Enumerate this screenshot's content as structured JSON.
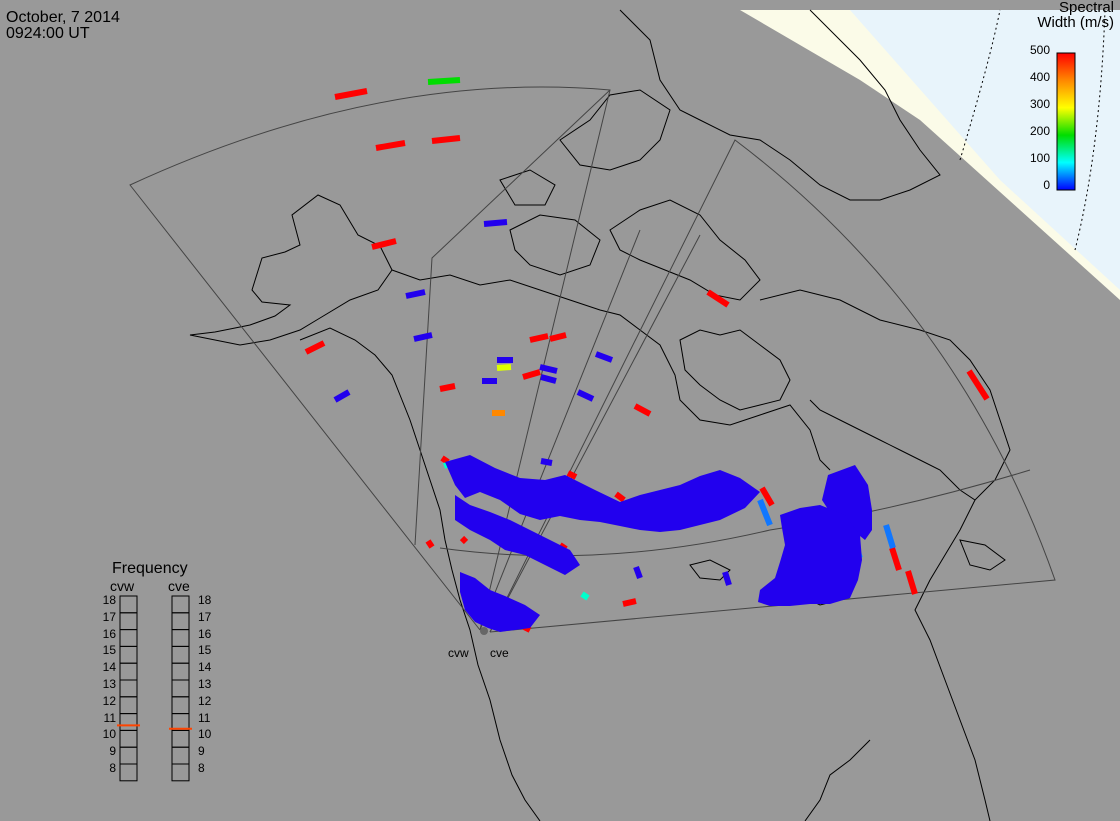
{
  "header": {
    "date": "October, 7 2014",
    "time": "0924:00 UT"
  },
  "colorbar": {
    "title_line1": "Spectral",
    "title_line2": "Width (m/s)",
    "ticks": [
      "500",
      "400",
      "300",
      "200",
      "100",
      "0"
    ],
    "stops": [
      "#ff0000",
      "#ff8800",
      "#ffff00",
      "#00dd00",
      "#00ffff",
      "#0000ff"
    ]
  },
  "frequency": {
    "title": "Frequency",
    "radars": [
      {
        "code": "cvw",
        "current_mhz": 10.8
      },
      {
        "code": "cve",
        "current_mhz": 10.6
      }
    ],
    "scale": [
      "18",
      "17",
      "16",
      "15",
      "14",
      "13",
      "12",
      "11",
      "10",
      "9",
      "8"
    ],
    "marker_color": "#ff4400"
  },
  "sites": [
    "cvw",
    "cve"
  ],
  "colors": {
    "background": "#999999",
    "daylight": "#fbfbe8",
    "polar": "#e8f4fb",
    "coast": "#000000",
    "fov": "#444444"
  }
}
